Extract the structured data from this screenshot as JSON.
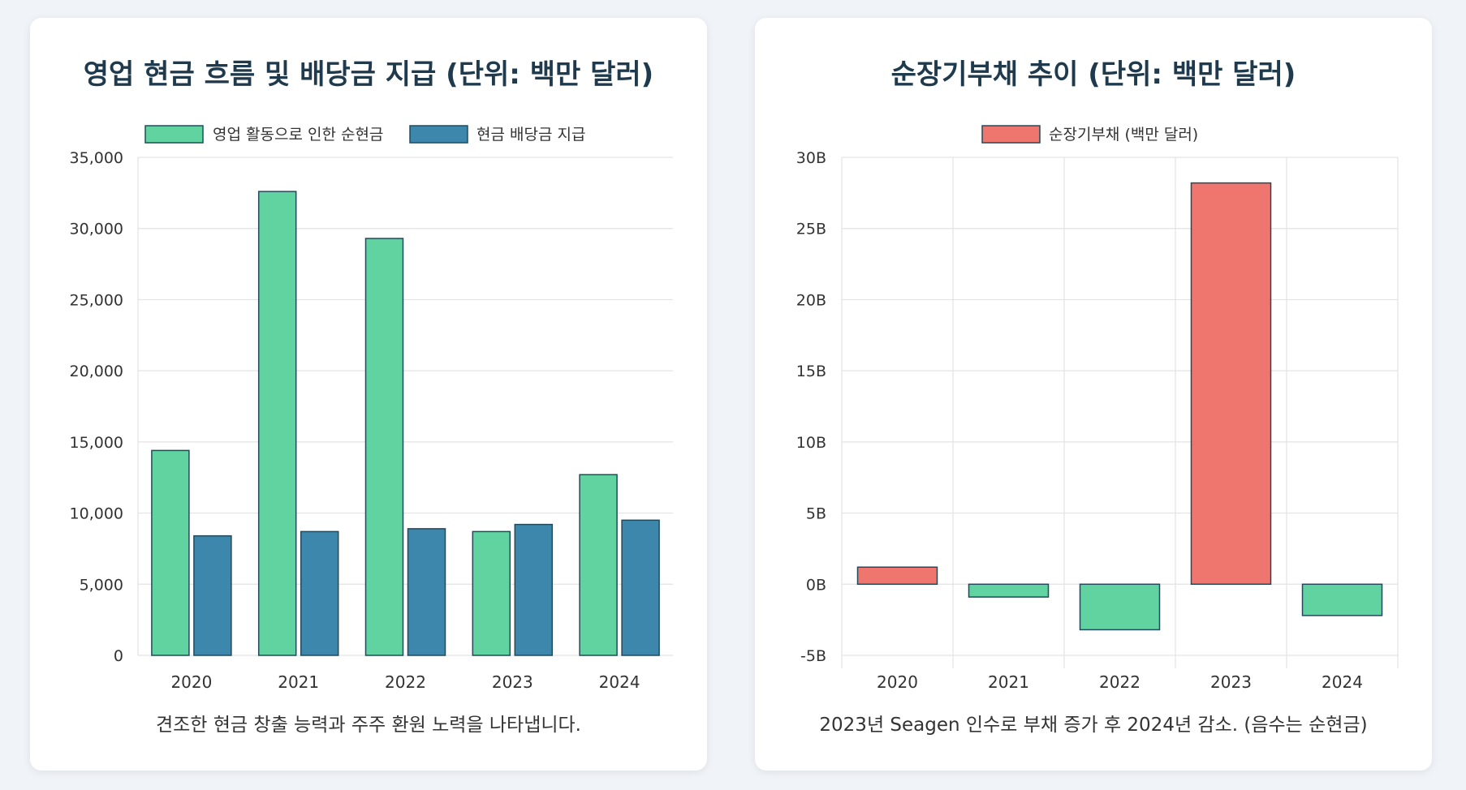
{
  "colors": {
    "green": "#60d3a1",
    "blue": "#3d87ac",
    "red": "#ee766f",
    "bar_stroke": "#234a5a",
    "grid": "#e3e3e3",
    "text": "#333333"
  },
  "left_card": {
    "title": "영업 현금 흐름 및 배당금 지급 (단위: 백만 달러)",
    "caption": "견조한 현금 창출 능력과 주주 환원 노력을 나타냅니다."
  },
  "right_card": {
    "title": "순장기부채 추이 (단위: 백만 달러)",
    "caption": "2023년 Seagen 인수로 부채 증가 후 2024년 감소. (음수는 순현금)"
  },
  "chart_data": [
    {
      "type": "bar",
      "categories": [
        "2020",
        "2021",
        "2022",
        "2023",
        "2024"
      ],
      "series": [
        {
          "name": "영업 활동으로 인한 순현금",
          "values": [
            14400,
            32600,
            29300,
            8700,
            12700
          ],
          "color": "#60d3a1"
        },
        {
          "name": "현금 배당금 지급",
          "values": [
            8400,
            8700,
            8900,
            9200,
            9500
          ],
          "color": "#3d87ac"
        }
      ],
      "ylim": [
        0,
        35000
      ],
      "yticks": [
        0,
        5000,
        10000,
        15000,
        20000,
        25000,
        30000,
        35000
      ],
      "ytick_labels": [
        "0",
        "5,000",
        "10,000",
        "15,000",
        "20,000",
        "25,000",
        "30,000",
        "35,000"
      ],
      "grid": "horizontal",
      "legend": "top-center"
    },
    {
      "type": "bar",
      "categories": [
        "2020",
        "2021",
        "2022",
        "2023",
        "2024"
      ],
      "series": [
        {
          "name": "순장기부채 (백만 달러)",
          "values": [
            1.2,
            -0.9,
            -3.2,
            28.2,
            -2.2
          ],
          "color": "#ee766f",
          "negative_color": "#60d3a1"
        }
      ],
      "value_unit": "B",
      "ylim": [
        -5,
        30
      ],
      "yticks": [
        -5,
        0,
        5,
        10,
        15,
        20,
        25,
        30
      ],
      "ytick_labels": [
        "-5B",
        "0B",
        "5B",
        "10B",
        "15B",
        "20B",
        "25B",
        "30B"
      ],
      "grid": "both",
      "legend": "top-center"
    }
  ]
}
